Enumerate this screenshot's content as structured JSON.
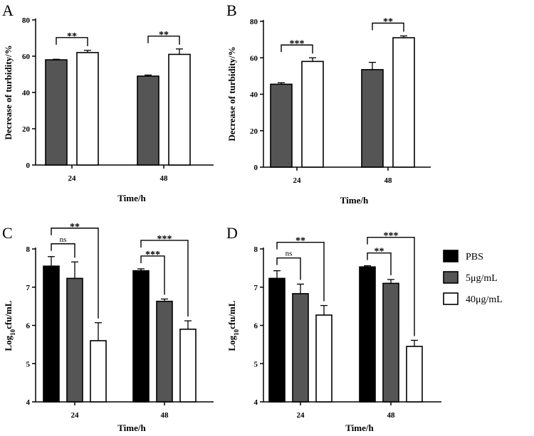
{
  "colors": {
    "PBS": "#000000",
    "5ug": "#555555",
    "40ug": "#ffffff",
    "dark": "#555555",
    "light": "#ffffff"
  },
  "legend": [
    {
      "key": "PBS",
      "label": "PBS"
    },
    {
      "key": "5ug",
      "label": "5μg/mL"
    },
    {
      "key": "40ug",
      "label": "40μg/mL"
    }
  ],
  "chart_data": [
    {
      "panel": "A",
      "type": "bar",
      "categories": [
        "24",
        "48"
      ],
      "xlabel": "Time/h",
      "ylabel": "Decrease of turbidity/%",
      "ylim": [
        0,
        80
      ],
      "yticks": [
        0,
        20,
        40,
        60,
        80
      ],
      "series": [
        {
          "key": "dark",
          "values": [
            58,
            49
          ],
          "errors": [
            0.3,
            0.6
          ]
        },
        {
          "key": "light",
          "values": [
            62,
            61
          ],
          "errors": [
            1.2,
            3
          ]
        }
      ],
      "significance": [
        {
          "cat": 0,
          "from": 0,
          "to": 1,
          "label": "**"
        },
        {
          "cat": 1,
          "from": 0,
          "to": 1,
          "label": "**"
        }
      ]
    },
    {
      "panel": "B",
      "type": "bar",
      "categories": [
        "24",
        "48"
      ],
      "xlabel": "Time/h",
      "ylabel": "Decrease of turbidity/%",
      "ylim": [
        0,
        80
      ],
      "yticks": [
        0,
        20,
        40,
        60,
        80
      ],
      "series": [
        {
          "key": "dark",
          "values": [
            45.5,
            53.5
          ],
          "errors": [
            0.8,
            4
          ]
        },
        {
          "key": "light",
          "values": [
            58,
            71
          ],
          "errors": [
            2,
            1
          ]
        }
      ],
      "significance": [
        {
          "cat": 0,
          "from": 0,
          "to": 1,
          "label": "***"
        },
        {
          "cat": 1,
          "from": 0,
          "to": 1,
          "label": "**"
        }
      ]
    },
    {
      "panel": "C",
      "type": "bar",
      "categories": [
        "24",
        "48"
      ],
      "xlabel": "Time/h",
      "ylabel_main": "Log",
      "ylabel_sub": "10",
      "ylabel_end": "cfu/mL",
      "ylim": [
        4,
        8
      ],
      "yticks": [
        4,
        5,
        6,
        7,
        8
      ],
      "series": [
        {
          "key": "PBS",
          "values": [
            7.55,
            7.43
          ],
          "errors": [
            0.25,
            0.05
          ]
        },
        {
          "key": "5ug",
          "values": [
            7.23,
            6.63
          ],
          "errors": [
            0.43,
            0.06
          ]
        },
        {
          "key": "40ug",
          "values": [
            5.6,
            5.9
          ],
          "errors": [
            0.47,
            0.22
          ]
        }
      ],
      "significance": [
        {
          "cat": 0,
          "from": 0,
          "to": 1,
          "label": "ns"
        },
        {
          "cat": 0,
          "from": 0,
          "to": 2,
          "label": "**"
        },
        {
          "cat": 1,
          "from": 0,
          "to": 1,
          "label": "***"
        },
        {
          "cat": 1,
          "from": 0,
          "to": 2,
          "label": "***"
        }
      ]
    },
    {
      "panel": "D",
      "type": "bar",
      "categories": [
        "24",
        "48"
      ],
      "xlabel": "Time/h",
      "ylabel_main": "Log",
      "ylabel_sub": "10",
      "ylabel_end": "cfu/mL",
      "ylim": [
        4,
        8
      ],
      "yticks": [
        4,
        5,
        6,
        7,
        8
      ],
      "series": [
        {
          "key": "PBS",
          "values": [
            7.23,
            7.53
          ],
          "errors": [
            0.2,
            0.03
          ]
        },
        {
          "key": "5ug",
          "values": [
            6.83,
            7.1
          ],
          "errors": [
            0.25,
            0.1
          ]
        },
        {
          "key": "40ug",
          "values": [
            6.27,
            5.45
          ],
          "errors": [
            0.25,
            0.16
          ]
        }
      ],
      "significance": [
        {
          "cat": 0,
          "from": 0,
          "to": 1,
          "label": "ns"
        },
        {
          "cat": 0,
          "from": 0,
          "to": 2,
          "label": "**"
        },
        {
          "cat": 1,
          "from": 0,
          "to": 1,
          "label": "**"
        },
        {
          "cat": 1,
          "from": 0,
          "to": 2,
          "label": "***"
        }
      ]
    }
  ]
}
